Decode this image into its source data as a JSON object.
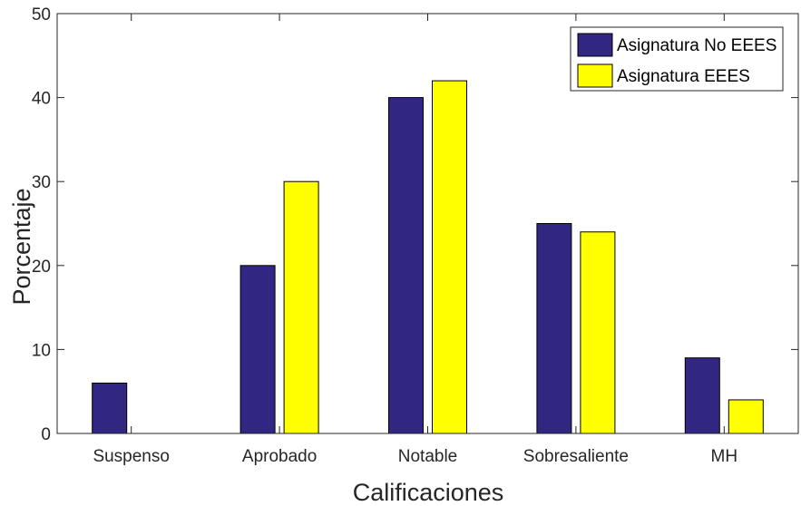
{
  "chart_data": {
    "type": "bar",
    "title": "",
    "xlabel": "Calificaciones",
    "ylabel": "Porcentaje",
    "categories": [
      "Suspenso",
      "Aprobado",
      "Notable",
      "Sobresaliente",
      "MH"
    ],
    "series": [
      {
        "name": "Asignatura No EEES",
        "values": [
          6,
          20,
          40,
          25,
          9
        ],
        "color": "#312783"
      },
      {
        "name": "Asignatura EEES",
        "values": [
          0,
          30,
          42,
          24,
          4
        ],
        "color": "#ffff00"
      }
    ],
    "ylim": [
      0,
      50
    ],
    "yticks": [
      "0",
      "10",
      "20",
      "30",
      "40",
      "50"
    ],
    "grid": false,
    "legend_position": "top-right"
  }
}
